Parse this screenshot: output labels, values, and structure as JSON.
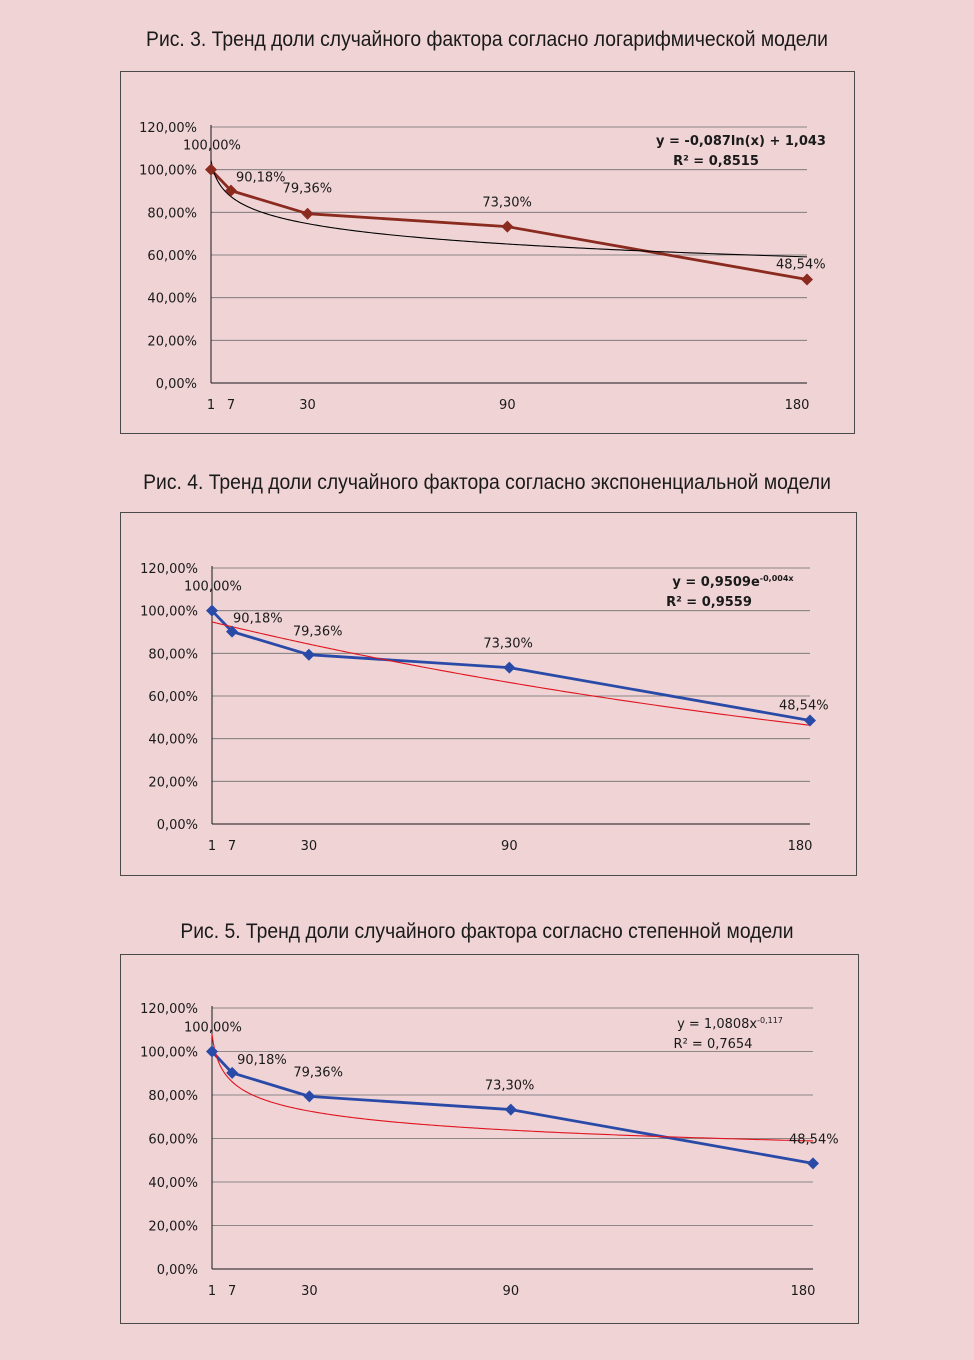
{
  "chart_data": [
    {
      "type": "line",
      "title": "Рис. 3. Тренд доли случайного фактора согласно логарифмической модели",
      "x": [
        1,
        7,
        30,
        90,
        180
      ],
      "xtick_labels": [
        "1",
        "7",
        "30",
        "90",
        "180"
      ],
      "ytick_labels": [
        "0,00%",
        "20,00%",
        "40,00%",
        "60,00%",
        "80,00%",
        "100,00%",
        "120,00%"
      ],
      "ylim": [
        0,
        1.2
      ],
      "grid": true,
      "series": [
        {
          "values": [
            1.0,
            0.9018,
            0.7936,
            0.733,
            0.4854
          ],
          "labels": [
            "100,00%",
            "90,18%",
            "79,36%",
            "73,30%",
            "48,54%"
          ],
          "color": "#8b2a1e",
          "marker": "diamond"
        }
      ],
      "trendline": {
        "model": "log",
        "a": -0.087,
        "b": 1.043,
        "color": "#000000",
        "equation": "y = -0,087ln(x) + 1,043",
        "equation_sup": "",
        "r2": "R² = 0,8515",
        "bold": true
      }
    },
    {
      "type": "line",
      "title": "Рис. 4. Тренд доли случайного фактора согласно экспоненциальной модели",
      "x": [
        1,
        7,
        30,
        90,
        180
      ],
      "xtick_labels": [
        "1",
        "7",
        "30",
        "90",
        "180"
      ],
      "ytick_labels": [
        "0,00%",
        "20,00%",
        "40,00%",
        "60,00%",
        "80,00%",
        "100,00%",
        "120,00%"
      ],
      "ylim": [
        0,
        1.2
      ],
      "grid": true,
      "series": [
        {
          "values": [
            1.0,
            0.9018,
            0.7936,
            0.733,
            0.4854
          ],
          "labels": [
            "100,00%",
            "90,18%",
            "79,36%",
            "73,30%",
            "48,54%"
          ],
          "color": "#2a4aa8",
          "marker": "diamond"
        }
      ],
      "trendline": {
        "model": "exp",
        "a": 0.9509,
        "b": -0.004,
        "color": "#e0141e",
        "equation": "y = 0,9509e",
        "equation_sup": "-0,004x",
        "r2": "R² = 0,9559",
        "bold": true
      }
    },
    {
      "type": "line",
      "title": "Рис. 5. Тренд доли случайного фактора согласно степенной модели",
      "x": [
        1,
        7,
        30,
        90,
        180
      ],
      "xtick_labels": [
        "1",
        "7",
        "30",
        "90",
        "180"
      ],
      "ytick_labels": [
        "0,00%",
        "20,00%",
        "40,00%",
        "60,00%",
        "80,00%",
        "100,00%",
        "120,00%"
      ],
      "ylim": [
        0,
        1.2
      ],
      "grid": true,
      "series": [
        {
          "values": [
            1.0,
            0.9018,
            0.7936,
            0.733,
            0.4854
          ],
          "labels": [
            "100,00%",
            "90,18%",
            "79,36%",
            "73,30%",
            "48,54%"
          ],
          "color": "#2a4aa8",
          "marker": "diamond"
        }
      ],
      "trendline": {
        "model": "power",
        "a": 1.0808,
        "b": -0.117,
        "color": "#e0141e",
        "equation": "y = 1,0808x",
        "equation_sup": "-0,117",
        "r2": "R² = 0,7654",
        "bold": false
      }
    }
  ]
}
